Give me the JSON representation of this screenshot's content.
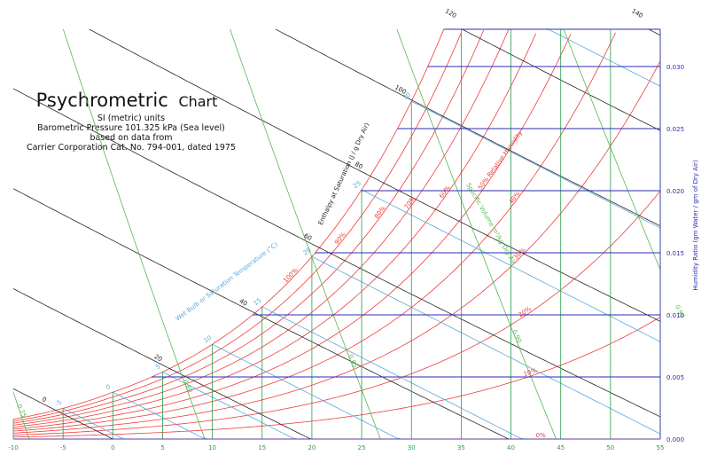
{
  "chart_data": {
    "type": "line",
    "title": "Psychrometric",
    "title_suffix": "Chart",
    "subtitle_lines": [
      "SI (metric) units",
      "Barometric Pressure 101.325 kPa (Sea level)",
      "based on data from",
      "Carrier Corporation Cat. No. 794-001, dated 1975"
    ],
    "xlabel": "",
    "ylabel": "Humidity Ratio (gm Water / gm of Dry Air)",
    "xlim": [
      -10,
      55
    ],
    "ylim": [
      0,
      0.033
    ],
    "x_ticks": [
      "-10",
      "-5",
      "0",
      "5",
      "10",
      "15",
      "20",
      "25",
      "30",
      "35",
      "40",
      "45",
      "50",
      "55"
    ],
    "y_ticks": [
      "0.000",
      "0.005",
      "0.010",
      "0.015",
      "0.020",
      "0.025",
      "0.030"
    ],
    "y_tick_values": [
      0,
      0.005,
      0.01,
      0.015,
      0.02,
      0.025,
      0.03
    ],
    "relative_humidity_series": [
      {
        "rh": 1.0,
        "label": "100%"
      },
      {
        "rh": 0.9,
        "label": "90%"
      },
      {
        "rh": 0.8,
        "label": "80%"
      },
      {
        "rh": 0.7,
        "label": "70%"
      },
      {
        "rh": 0.6,
        "label": "60%"
      },
      {
        "rh": 0.5,
        "label": "50% Relative Humidity"
      },
      {
        "rh": 0.4,
        "label": "40%"
      },
      {
        "rh": 0.3,
        "label": "30%"
      },
      {
        "rh": 0.2,
        "label": "20%"
      },
      {
        "rh": 0.1,
        "label": "10%"
      },
      {
        "rh": 0.0,
        "label": "0%"
      }
    ],
    "wet_bulb_axis_label": "Wet Bulb or Saturation Temperature (°C)",
    "wet_bulb_values": [
      -5,
      0,
      5,
      10,
      15,
      20,
      25,
      30,
      35
    ],
    "wet_bulb_labels": [
      "-5",
      "0",
      "5",
      "10",
      "15",
      "20",
      "25",
      "30",
      "35"
    ],
    "enthalpy_axis_label": "Enthalpy at Saturation (J / g Dry Air)",
    "enthalpy_values": [
      0,
      20,
      40,
      60,
      80,
      100,
      120,
      140
    ],
    "enthalpy_labels": [
      "0",
      "20",
      "40",
      "60",
      "80",
      "100",
      "120",
      "140"
    ],
    "specific_volume_label": "Specific Volume m³/kg Dry Air",
    "specific_volume_values": [
      0.75,
      0.8,
      0.85,
      0.9,
      0.95
    ],
    "specific_volume_labels": [
      "0.75",
      "0.80",
      "0.85",
      "0.90",
      "0.95"
    ],
    "colors": {
      "rh": "#f03c3c",
      "dry_bulb": "#2a9d48",
      "humidity_ratio": "#2b2bb8",
      "wet_bulb": "#5aa8dc",
      "enthalpy": "#222222",
      "specific_volume": "#55b84f",
      "y_axis": "#2b2bb8"
    },
    "grid": true
  }
}
